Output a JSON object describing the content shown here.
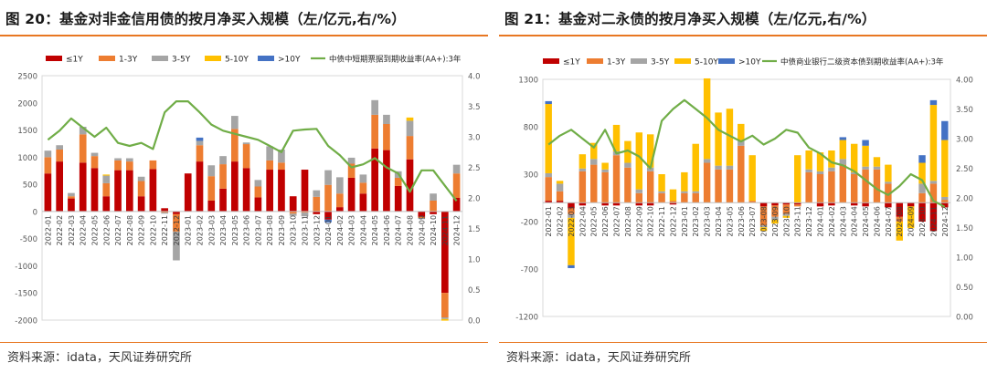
{
  "footer_source": "资料来源：idata，天风证券研究所",
  "chart_data": [
    {
      "type": "bar",
      "stacked": true,
      "title": "图 20：基金对非金信用债的按月净买入规模（左/亿元,右/%）",
      "ylim": [
        -2000,
        2500
      ],
      "y_ticks": [
        -2000,
        -1500,
        -1000,
        -500,
        0,
        500,
        1000,
        1500,
        2000,
        2500
      ],
      "y2lim": [
        0.0,
        4.0
      ],
      "y2_ticks": [
        "0.0",
        "0.5",
        "1.0",
        "1.5",
        "2.0",
        "2.5",
        "3.0",
        "3.5",
        "4.0"
      ],
      "legend_position": "top",
      "categories": [
        "2022-01",
        "2022-02",
        "2022-03",
        "2022-04",
        "2022-05",
        "2022-06",
        "2022-07",
        "2022-08",
        "2022-09",
        "2022-10",
        "2022-11",
        "2022-12",
        "2023-01",
        "2023-02",
        "2023-03",
        "2023-04",
        "2023-05",
        "2023-06",
        "2023-07",
        "2023-08",
        "2023-09",
        "2023-10",
        "2023-11",
        "2023-12",
        "2024-01",
        "2024-02",
        "2024-03",
        "2024-04",
        "2024-05",
        "2024-06",
        "2024-07",
        "2024-08",
        "2024-09",
        "2024-10",
        "2024-11",
        "2024-12"
      ],
      "series": [
        {
          "name": "≤1Y",
          "color": "#c00000",
          "values": [
            700,
            920,
            240,
            900,
            800,
            280,
            760,
            760,
            280,
            780,
            60,
            -50,
            700,
            920,
            200,
            420,
            920,
            800,
            260,
            770,
            770,
            280,
            770,
            -50,
            -150,
            80,
            620,
            330,
            1160,
            1130,
            470,
            960,
            -100,
            -50,
            -1500,
            250
          ]
        },
        {
          "name": "1-3Y",
          "color": "#ed7d31",
          "values": [
            300,
            220,
            40,
            520,
            220,
            240,
            180,
            160,
            280,
            160,
            -20,
            -320,
            0,
            300,
            450,
            450,
            600,
            440,
            200,
            170,
            130,
            -40,
            -20,
            270,
            490,
            250,
            260,
            200,
            620,
            480,
            150,
            430,
            -20,
            200,
            -450,
            450
          ]
        },
        {
          "name": "3-5Y",
          "color": "#a5a5a5",
          "values": [
            120,
            80,
            60,
            140,
            60,
            140,
            40,
            60,
            80,
            0,
            -20,
            -530,
            0,
            80,
            200,
            150,
            240,
            30,
            120,
            260,
            240,
            -40,
            -70,
            120,
            270,
            300,
            110,
            150,
            270,
            170,
            120,
            280,
            -20,
            130,
            -30,
            160
          ]
        },
        {
          "name": "5-10Y",
          "color": "#ffc000",
          "values": [
            0,
            0,
            0,
            0,
            0,
            20,
            0,
            0,
            0,
            0,
            0,
            0,
            0,
            0,
            0,
            0,
            0,
            0,
            0,
            0,
            0,
            0,
            0,
            0,
            0,
            0,
            0,
            0,
            0,
            0,
            0,
            60,
            0,
            0,
            -30,
            0
          ]
        },
        {
          "name": ">10Y",
          "color": "#4472c4",
          "values": [
            0,
            0,
            0,
            0,
            0,
            0,
            0,
            0,
            0,
            0,
            0,
            0,
            0,
            60,
            0,
            0,
            0,
            0,
            0,
            0,
            0,
            0,
            0,
            0,
            -50,
            0,
            0,
            0,
            0,
            0,
            0,
            0,
            0,
            0,
            0,
            0
          ]
        },
        {
          "name": "中债中短期票据到期收益率(AA+):3年",
          "color": "#70ad47",
          "axis": "right",
          "values": [
            2.95,
            3.1,
            3.3,
            3.15,
            3.0,
            3.15,
            2.9,
            2.85,
            2.9,
            2.8,
            3.4,
            3.58,
            3.58,
            3.4,
            3.2,
            3.1,
            3.05,
            3.0,
            2.95,
            2.85,
            2.75,
            3.1,
            3.12,
            3.13,
            2.85,
            2.7,
            2.5,
            2.55,
            2.65,
            2.5,
            2.4,
            2.1,
            2.45,
            2.45,
            2.2,
            1.95
          ]
        }
      ]
    },
    {
      "type": "bar",
      "stacked": true,
      "title": "图 21：基金对二永债的按月净买入规模（左/亿元,右/%）",
      "ylim": [
        -1200,
        1300
      ],
      "y_ticks": [
        -1200,
        -700,
        -200,
        300,
        800,
        1300
      ],
      "y2lim": [
        0.0,
        4.0
      ],
      "y2_ticks": [
        "0.00",
        "0.50",
        "1.00",
        "1.50",
        "2.00",
        "2.50",
        "3.00",
        "3.50",
        "4.00"
      ],
      "legend_position": "top",
      "categories": [
        "2022-01",
        "2022-02",
        "2022-03",
        "2022-04",
        "2022-05",
        "2022-06",
        "2022-07",
        "2022-08",
        "2022-09",
        "2022-10",
        "2022-11",
        "2022-12",
        "2023-01",
        "2023-02",
        "2023-03",
        "2023-04",
        "2023-05",
        "2023-06",
        "2023-07",
        "2023-08",
        "2023-09",
        "2023-10",
        "2023-11",
        "2023-12",
        "2024-01",
        "2024-02",
        "2024-03",
        "2024-04",
        "2024-05",
        "2024-06",
        "2024-07",
        "2024-08",
        "2024-09",
        "2024-10",
        "2024-11",
        "2024-12"
      ],
      "series": [
        {
          "name": "≤1Y",
          "color": "#c00000",
          "values": [
            20,
            20,
            -60,
            -30,
            0,
            -30,
            -30,
            0,
            -30,
            -30,
            0,
            -20,
            0,
            0,
            0,
            0,
            0,
            0,
            0,
            -40,
            -30,
            -20,
            -20,
            0,
            -40,
            -30,
            0,
            -30,
            -40,
            0,
            -50,
            -150,
            -40,
            -200,
            -300,
            -50
          ]
        },
        {
          "name": "1-3Y",
          "color": "#ed7d31",
          "values": [
            250,
            100,
            -60,
            330,
            400,
            320,
            500,
            370,
            100,
            330,
            100,
            20,
            100,
            100,
            420,
            350,
            350,
            600,
            20,
            -200,
            -120,
            -100,
            -20,
            320,
            300,
            330,
            400,
            300,
            350,
            350,
            200,
            -50,
            0,
            100,
            200,
            30
          ]
        },
        {
          "name": "3-5Y",
          "color": "#a5a5a5",
          "values": [
            40,
            80,
            -40,
            30,
            60,
            30,
            40,
            50,
            40,
            40,
            20,
            0,
            20,
            20,
            40,
            40,
            40,
            60,
            0,
            -20,
            -30,
            -20,
            0,
            30,
            30,
            40,
            60,
            20,
            30,
            30,
            20,
            0,
            0,
            100,
            30,
            30
          ]
        },
        {
          "name": "5-10Y",
          "color": "#ffc000",
          "values": [
            730,
            30,
            -500,
            150,
            170,
            70,
            280,
            230,
            600,
            350,
            180,
            120,
            200,
            500,
            850,
            560,
            600,
            170,
            480,
            -40,
            -40,
            -20,
            500,
            200,
            200,
            180,
            200,
            300,
            220,
            100,
            180,
            -200,
            -230,
            220,
            800,
            600
          ]
        },
        {
          "name": ">10Y",
          "color": "#4472c4",
          "values": [
            30,
            0,
            -30,
            0,
            0,
            0,
            0,
            0,
            0,
            0,
            0,
            0,
            0,
            0,
            0,
            0,
            0,
            0,
            0,
            0,
            0,
            0,
            0,
            0,
            0,
            0,
            30,
            0,
            60,
            0,
            0,
            0,
            0,
            80,
            50,
            200
          ]
        },
        {
          "name": "中债商业银行二级资本债到期收益率(AA+):3年",
          "color": "#70ad47",
          "axis": "right",
          "values": [
            2.9,
            3.05,
            3.15,
            3.0,
            2.85,
            3.15,
            2.75,
            2.8,
            2.7,
            2.5,
            3.3,
            3.5,
            3.65,
            3.5,
            3.35,
            3.15,
            3.05,
            2.95,
            3.05,
            2.9,
            3.0,
            3.15,
            3.1,
            2.85,
            2.75,
            2.6,
            2.55,
            2.45,
            2.3,
            2.15,
            2.05,
            2.2,
            2.4,
            2.3,
            1.95,
            1.85
          ]
        }
      ]
    }
  ]
}
